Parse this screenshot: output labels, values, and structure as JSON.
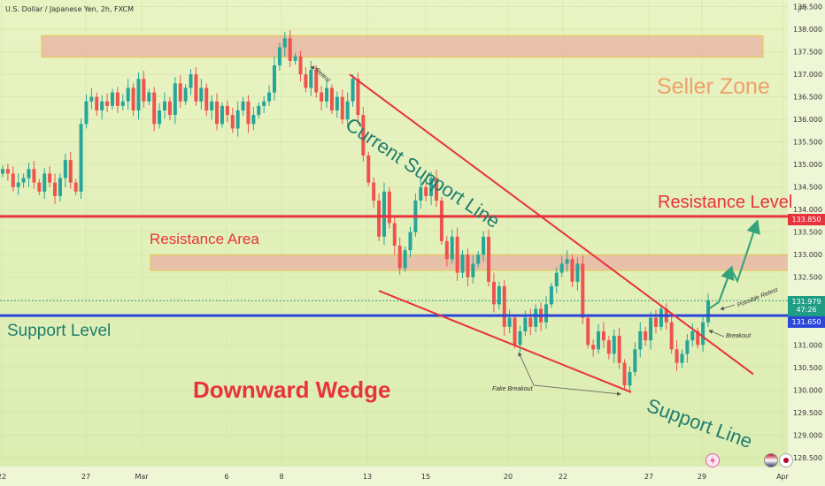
{
  "header": {
    "symbol_title": "U.S. Dollar / Japanese Yen, 2h, FXCM",
    "currency": "JPY"
  },
  "colors": {
    "up_candle": "#26a69a",
    "down_candle": "#ef5350",
    "resistance_level": "#e8323c",
    "support_level": "#2b47d9",
    "trend_line": "#e8323c",
    "zone_fill": "#e8b9a6",
    "zone_border": "#e5c84a",
    "arrow": "#33a37a"
  },
  "chart_data": {
    "type": "candlestick",
    "y_range": [
      128.3,
      138.65
    ],
    "y_ticks": [
      "138.500",
      "138.000",
      "137.500",
      "137.000",
      "136.500",
      "136.000",
      "135.500",
      "135.000",
      "134.500",
      "134.000",
      "133.500",
      "133.000",
      "132.500",
      "132.000",
      "131.500",
      "131.000",
      "130.500",
      "130.000",
      "129.500",
      "129.000",
      "128.500"
    ],
    "x_ticks": [
      "22",
      "27",
      "Mar",
      "6",
      "8",
      "13",
      "15",
      "20",
      "22",
      "27",
      "29",
      "Apr"
    ],
    "price_labels": {
      "resistance": "133.850",
      "current": "131.979",
      "countdown": "47:26",
      "support": "131.650"
    },
    "levels": {
      "resistance": 133.85,
      "support": 131.65,
      "current": 131.979
    },
    "zones": [
      {
        "name": "Seller Zone",
        "low": 137.38,
        "high": 137.86
      },
      {
        "name": "Resistance Area",
        "low": 132.65,
        "high": 133.0
      }
    ],
    "trend_lines": [
      {
        "name": "Current Support Line",
        "from": [
          "Mar 12",
          137.0
        ],
        "to": [
          "Mar 31",
          130.35
        ]
      },
      {
        "name": "Support Line",
        "from": [
          "Mar 13",
          132.2
        ],
        "to": [
          "Mar 24",
          129.95
        ]
      }
    ],
    "annotations": {
      "seller_zone": "Seller Zone",
      "current_support_line": "Current Support Line",
      "resistance_level": "Resistance Level",
      "resistance_area": "Resistance Area",
      "support_level": "Support Level",
      "downward_wedge": "Downward Wedge",
      "support_line": "Support Line",
      "retest": "Retest",
      "possible_retest": "Possible Retest",
      "breakout": "Breakout",
      "fake_breakout": "Fake Breakout"
    },
    "closes": [
      134.9,
      134.8,
      134.5,
      134.6,
      134.7,
      134.9,
      134.6,
      134.4,
      134.8,
      134.6,
      134.3,
      134.7,
      135.1,
      134.6,
      134.4,
      135.9,
      136.4,
      136.5,
      136.2,
      136.4,
      136.3,
      136.6,
      136.3,
      136.4,
      136.7,
      136.2,
      136.9,
      136.4,
      136.6,
      135.9,
      136.2,
      136.4,
      136.1,
      136.8,
      136.4,
      136.7,
      137.0,
      136.4,
      136.7,
      136.2,
      136.4,
      135.9,
      136.3,
      136.1,
      135.8,
      136.2,
      136.4,
      135.9,
      136.1,
      136.3,
      136.4,
      136.6,
      137.2,
      137.6,
      137.8,
      137.3,
      137.4,
      137.0,
      136.7,
      137.1,
      136.6,
      136.4,
      136.7,
      136.2,
      136.5,
      136.0,
      136.4,
      136.9,
      136.1,
      135.2,
      134.6,
      134.2,
      133.4,
      134.4,
      133.7,
      133.2,
      132.7,
      133.1,
      133.5,
      134.2,
      134.5,
      134.3,
      134.7,
      134.2,
      133.3,
      132.9,
      133.4,
      132.6,
      133.0,
      132.5,
      132.8,
      133.0,
      133.4,
      132.4,
      131.9,
      132.3,
      131.4,
      131.6,
      131.0,
      131.3,
      131.6,
      131.4,
      131.8,
      131.5,
      131.9,
      132.3,
      132.6,
      132.8,
      132.9,
      132.4,
      132.8,
      131.6,
      131.0,
      130.9,
      131.3,
      131.1,
      130.8,
      131.2,
      130.6,
      130.1,
      130.4,
      130.9,
      131.3,
      131.1,
      131.6,
      131.4,
      131.8,
      131.5,
      130.9,
      130.6,
      130.8,
      131.1,
      131.3,
      131.0,
      131.5,
      131.98
    ]
  }
}
